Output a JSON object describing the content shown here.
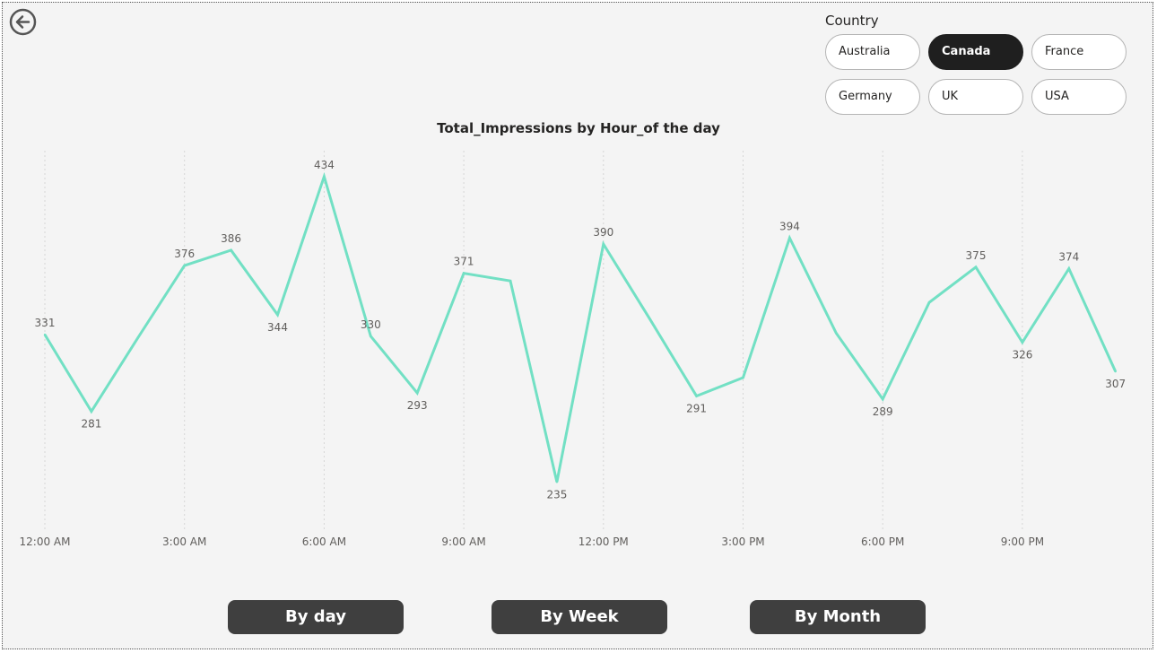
{
  "slicer": {
    "title": "Country",
    "options": [
      "Australia",
      "Canada",
      "France",
      "Germany",
      "UK",
      "USA"
    ],
    "selected": "Canada"
  },
  "chart_data": {
    "type": "line",
    "title": "Total_Impressions by Hour_of the day",
    "xlabel": "",
    "ylabel": "",
    "x": [
      0,
      1,
      2,
      3,
      4,
      5,
      6,
      7,
      8,
      9,
      10,
      11,
      12,
      13,
      14,
      15,
      16,
      17,
      18,
      19,
      20,
      21,
      22,
      23
    ],
    "x_tick_labels": [
      "12:00 AM",
      "3:00 AM",
      "6:00 AM",
      "9:00 AM",
      "12:00 PM",
      "3:00 PM",
      "6:00 PM",
      "9:00 PM"
    ],
    "x_tick_positions": [
      0,
      3,
      6,
      9,
      12,
      15,
      18,
      21
    ],
    "series": [
      {
        "values": [
          331,
          281,
          329,
          376,
          386,
          344,
          434,
          330,
          293,
          371,
          366,
          235,
          390,
          341,
          291,
          303,
          394,
          332,
          289,
          352,
          375,
          326,
          374,
          307
        ],
        "labels": [
          "331",
          "281",
          "",
          "376",
          "386",
          "344",
          "434",
          "330",
          "293",
          "371",
          "",
          "235",
          "390",
          "",
          "291",
          "",
          "394",
          "",
          "289",
          "",
          "375",
          "326",
          "374",
          "307"
        ],
        "color": "#72e0c4"
      }
    ],
    "ylim": [
      220,
      445
    ],
    "grid": "vertical dotted"
  },
  "nav": {
    "by_day": "By day",
    "by_week": "By Week",
    "by_month": "By Month"
  },
  "icons": {
    "back": "back-arrow-icon"
  }
}
